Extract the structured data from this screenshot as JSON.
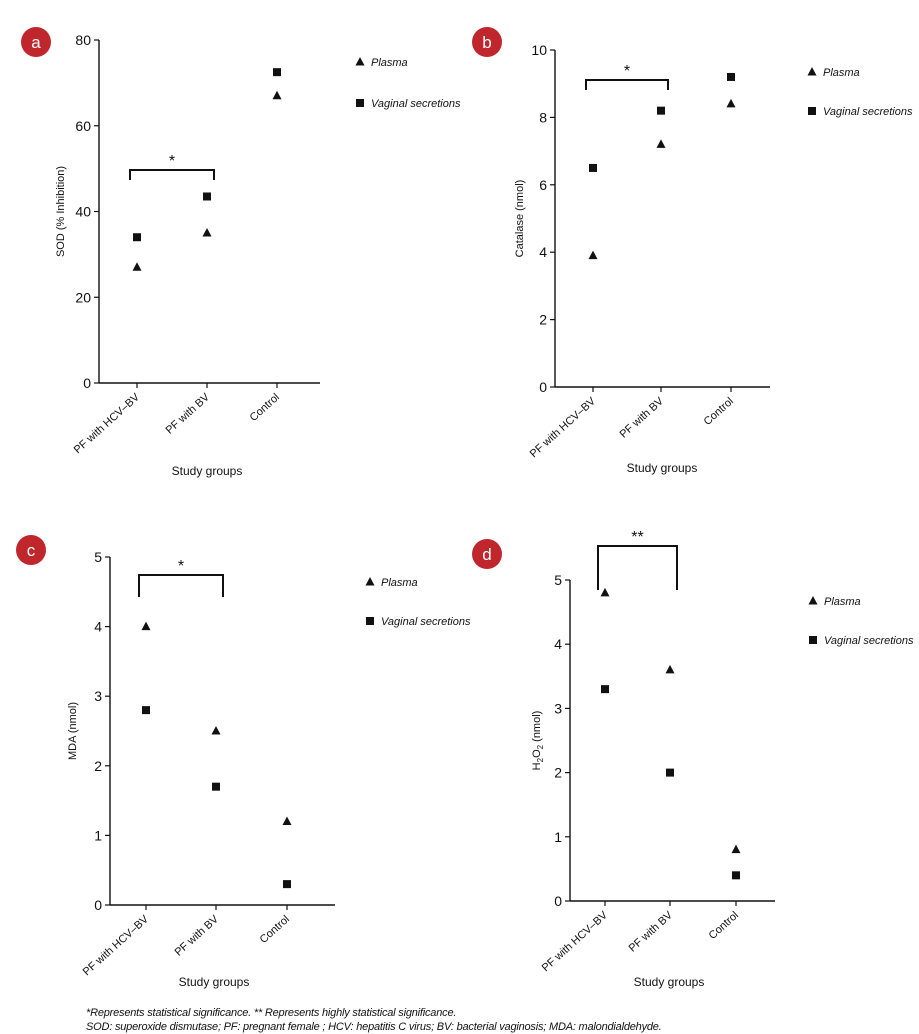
{
  "chart_data": [
    {
      "id": "a",
      "type": "scatter",
      "panel_label": "a",
      "panel_color": "#c0272d",
      "xlabel": "Study groups",
      "ylabel": "SOD (% Inhibition)",
      "ylim": [
        0,
        80
      ],
      "yticks": [
        "0",
        "20",
        "40",
        "60",
        "80"
      ],
      "categories": [
        "PF with HCV–BV",
        "PF with BV",
        "Control"
      ],
      "series": [
        {
          "name": "Plasma",
          "marker": "triangle",
          "values": [
            27,
            35,
            67
          ]
        },
        {
          "name": "Vaginal secretions",
          "marker": "square",
          "values": [
            34,
            43.5,
            72.5
          ]
        }
      ],
      "significance": {
        "from": 0,
        "to": 1,
        "label": "*"
      },
      "legend_position": "top-right",
      "grid": false
    },
    {
      "id": "b",
      "type": "scatter",
      "panel_label": "b",
      "panel_color": "#c0272d",
      "xlabel": "Study groups",
      "ylabel": "Catalase (nmol)",
      "ylim": [
        0,
        10
      ],
      "yticks": [
        "0",
        "2",
        "4",
        "6",
        "8",
        "10"
      ],
      "categories": [
        "PF with HCV–BV",
        "PF with BV",
        "Control"
      ],
      "series": [
        {
          "name": "Plasma",
          "marker": "triangle",
          "values": [
            3.9,
            7.2,
            8.4
          ]
        },
        {
          "name": "Vaginal secretions",
          "marker": "square",
          "values": [
            6.5,
            8.2,
            9.2
          ]
        }
      ],
      "significance": {
        "from": 0,
        "to": 1,
        "label": "*"
      },
      "legend_position": "top-right",
      "grid": false
    },
    {
      "id": "c",
      "type": "scatter",
      "panel_label": "c",
      "panel_color": "#c0272d",
      "xlabel": "Study groups",
      "ylabel": "MDA (nmol)",
      "ylim": [
        0,
        5
      ],
      "yticks": [
        "0",
        "1",
        "2",
        "3",
        "4",
        "5"
      ],
      "categories": [
        "PF with HCV–BV",
        "PF with BV",
        "Control"
      ],
      "series": [
        {
          "name": "Plasma",
          "marker": "triangle",
          "values": [
            4.0,
            2.5,
            1.2
          ]
        },
        {
          "name": "Vaginal secretions",
          "marker": "square",
          "values": [
            2.8,
            1.7,
            0.3
          ]
        }
      ],
      "significance": {
        "from": 0,
        "to": 1,
        "label": "*"
      },
      "legend_position": "top-right",
      "grid": false
    },
    {
      "id": "d",
      "type": "scatter",
      "panel_label": "d",
      "panel_color": "#c0272d",
      "xlabel": "Study groups",
      "ylabel_parts": [
        "H",
        "2",
        "O",
        "2",
        " (nmol)"
      ],
      "ylim": [
        0,
        5
      ],
      "yticks": [
        "0",
        "1",
        "2",
        "3",
        "4",
        "5"
      ],
      "categories": [
        "PF with HCV–BV",
        "PF with BV",
        "Control"
      ],
      "series": [
        {
          "name": "Plasma",
          "marker": "triangle",
          "values": [
            4.8,
            3.6,
            0.8
          ]
        },
        {
          "name": "Vaginal secretions",
          "marker": "square",
          "values": [
            3.3,
            2.0,
            0.4
          ]
        }
      ],
      "significance": {
        "from": 0,
        "to": 1,
        "label": "**"
      },
      "legend_position": "top-right",
      "grid": false
    }
  ],
  "footnotes": {
    "line1": "*Represents statistical significance. ** Represents highly statistical significance.",
    "line2": "SOD: superoxide dismutase; PF: pregnant female ; HCV: hepatitis C virus; BV: bacterial vaginosis; MDA: malondialdehyde."
  }
}
